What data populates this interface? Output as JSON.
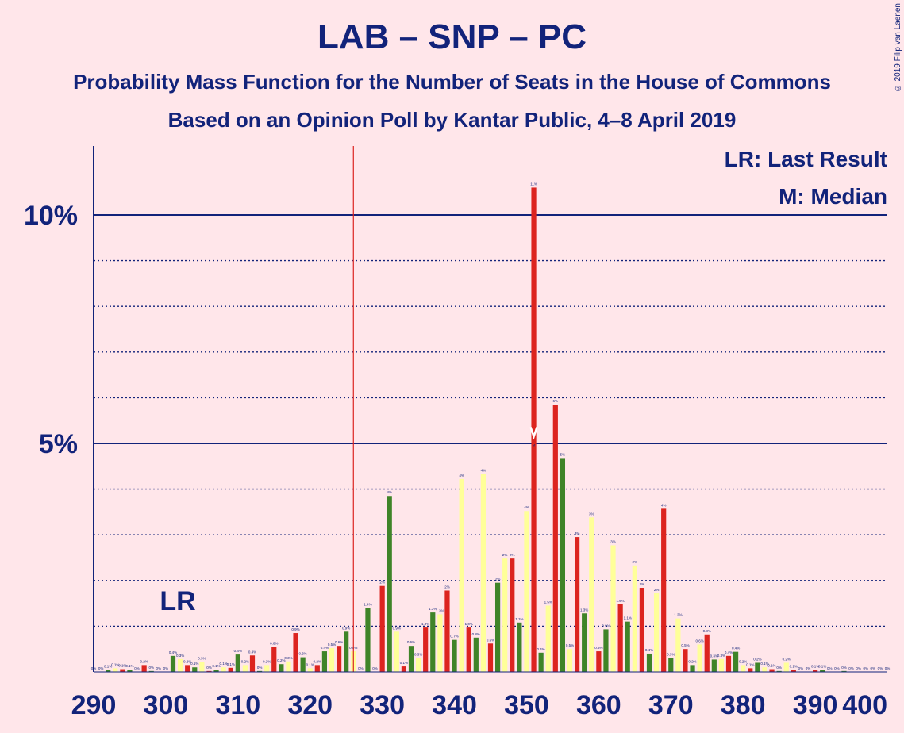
{
  "title": "LAB – SNP – PC",
  "subtitle1": "Probability Mass Function for the Number of Seats in the House of Commons",
  "subtitle2": "Based on an Opinion Poll by Kantar Public, 4–8 April 2019",
  "copyright": "© 2019 Filip van Laenen",
  "legend": {
    "lr": "LR: Last Result",
    "m": "M: Median"
  },
  "lr_label": "LR",
  "median_label": "M",
  "colors": {
    "background": "#FFE6EA",
    "red": "#DC241F",
    "green": "#3F8428",
    "yellow": "#FFFF99",
    "text": "#12237A"
  },
  "chart_data": {
    "type": "bar",
    "x_range": [
      290,
      400
    ],
    "x_ticks": [
      290,
      300,
      310,
      320,
      330,
      340,
      350,
      360,
      370,
      380,
      390,
      400
    ],
    "y_ticks": [
      {
        "value": 5,
        "label": "5%"
      },
      {
        "value": 10,
        "label": "10%"
      }
    ],
    "ylim": [
      0,
      11.5
    ],
    "last_result": 326,
    "median": 351,
    "color_cycle": [
      "#FFFF99",
      "#DC241F",
      "#3F8428"
    ],
    "values": [
      [
        290,
        0.0,
        "0%"
      ],
      [
        291,
        0.0,
        "0%"
      ],
      [
        292,
        0.04,
        "0.1%"
      ],
      [
        293,
        0.08,
        "0.1%"
      ],
      [
        294,
        0.06,
        "0.1%"
      ],
      [
        295,
        0.05,
        "0.1%"
      ],
      [
        296,
        0.0,
        "0%"
      ],
      [
        297,
        0.15,
        "0.2%"
      ],
      [
        298,
        0.02,
        "0%"
      ],
      [
        299,
        0.0,
        "0%"
      ],
      [
        300,
        0.0,
        "0%"
      ],
      [
        301,
        0.35,
        "0.4%"
      ],
      [
        302,
        0.28,
        "0.3%"
      ],
      [
        303,
        0.15,
        "0.2%"
      ],
      [
        304,
        0.1,
        "0.1%"
      ],
      [
        305,
        0.22,
        "0.3%"
      ],
      [
        306,
        0.02,
        "0%"
      ],
      [
        307,
        0.05,
        "0.1%"
      ],
      [
        308,
        0.1,
        "0.1%"
      ],
      [
        309,
        0.09,
        "0.1%"
      ],
      [
        310,
        0.38,
        "0.4%"
      ],
      [
        311,
        0.15,
        "0.2%"
      ],
      [
        312,
        0.36,
        "0.4%"
      ],
      [
        313,
        0.02,
        "0%"
      ],
      [
        314,
        0.15,
        "0.2%"
      ],
      [
        315,
        0.55,
        "0.6%"
      ],
      [
        316,
        0.17,
        "0.2%"
      ],
      [
        317,
        0.23,
        "0.3%"
      ],
      [
        318,
        0.85,
        "0.9%"
      ],
      [
        319,
        0.32,
        "0.3%"
      ],
      [
        320,
        0.08,
        "0.1%"
      ],
      [
        321,
        0.15,
        "0.2%"
      ],
      [
        322,
        0.45,
        "0.4%"
      ],
      [
        323,
        0.52,
        "0.5%"
      ],
      [
        324,
        0.57,
        "0.6%"
      ],
      [
        325,
        0.88,
        "0.9%"
      ],
      [
        326,
        0.45,
        "0.5%"
      ],
      [
        327,
        0.0,
        "0%"
      ],
      [
        328,
        1.4,
        "1.4%"
      ],
      [
        329,
        0.0,
        "0%"
      ],
      [
        330,
        1.88,
        "2%"
      ],
      [
        331,
        3.85,
        "4%"
      ],
      [
        332,
        0.88,
        "0.9%"
      ],
      [
        333,
        0.12,
        "0.1%"
      ],
      [
        334,
        0.57,
        "0.6%"
      ],
      [
        335,
        0.3,
        "0.3%"
      ],
      [
        336,
        0.97,
        "1.0%"
      ],
      [
        337,
        1.3,
        "1.3%"
      ],
      [
        338,
        1.26,
        "1.3%"
      ],
      [
        339,
        1.78,
        "2%"
      ],
      [
        340,
        0.7,
        "0.7%"
      ],
      [
        341,
        4.22,
        "4%"
      ],
      [
        342,
        0.97,
        "1.0%"
      ],
      [
        343,
        0.75,
        "0.8%"
      ],
      [
        344,
        4.33,
        "4%"
      ],
      [
        345,
        0.62,
        "0.6%"
      ],
      [
        346,
        1.95,
        "2%"
      ],
      [
        347,
        2.48,
        "2%"
      ],
      [
        348,
        2.48,
        "2%"
      ],
      [
        349,
        1.08,
        "1.1%"
      ],
      [
        350,
        3.52,
        "4%"
      ],
      [
        351,
        10.6,
        "11%"
      ],
      [
        352,
        0.42,
        "0.4%"
      ],
      [
        353,
        1.45,
        "1.5%"
      ],
      [
        354,
        5.85,
        "6%"
      ],
      [
        355,
        4.68,
        "5%"
      ],
      [
        356,
        0.5,
        "0.5%"
      ],
      [
        357,
        2.95,
        "3%"
      ],
      [
        358,
        1.28,
        "1.3%"
      ],
      [
        359,
        3.38,
        "3%"
      ],
      [
        360,
        0.45,
        "0.5%"
      ],
      [
        361,
        0.93,
        "0.9%"
      ],
      [
        362,
        2.77,
        "3%"
      ],
      [
        363,
        1.48,
        "1.5%"
      ],
      [
        364,
        1.1,
        "1.1%"
      ],
      [
        365,
        2.33,
        "2%"
      ],
      [
        366,
        1.84,
        "2%"
      ],
      [
        367,
        0.4,
        "0.4%"
      ],
      [
        368,
        1.72,
        "2%"
      ],
      [
        369,
        3.57,
        "4%"
      ],
      [
        370,
        0.3,
        "0.3%"
      ],
      [
        371,
        1.17,
        "1.2%"
      ],
      [
        372,
        0.5,
        "0.5%"
      ],
      [
        373,
        0.15,
        "0.2%"
      ],
      [
        374,
        0.6,
        "0.6%"
      ],
      [
        375,
        0.82,
        "0.8%"
      ],
      [
        376,
        0.27,
        "0.3%"
      ],
      [
        377,
        0.28,
        "0.3%"
      ],
      [
        378,
        0.35,
        "0.4%"
      ],
      [
        379,
        0.44,
        "0.4%"
      ],
      [
        380,
        0.15,
        "0.2%"
      ],
      [
        381,
        0.08,
        "0.1%"
      ],
      [
        382,
        0.2,
        "0.2%"
      ],
      [
        383,
        0.1,
        "0.1%"
      ],
      [
        384,
        0.06,
        "0.1%"
      ],
      [
        385,
        0.02,
        "0%"
      ],
      [
        386,
        0.2,
        "0.2%"
      ],
      [
        387,
        0.04,
        "0.1%"
      ],
      [
        388,
        0.0,
        "0%"
      ],
      [
        389,
        0.0,
        "0%"
      ],
      [
        390,
        0.04,
        "0.1%"
      ],
      [
        391,
        0.04,
        "0.1%"
      ],
      [
        392,
        0.0,
        "0%"
      ],
      [
        393,
        0.0,
        "0%"
      ],
      [
        394,
        0.02,
        "0%"
      ],
      [
        395,
        0.0,
        "0%"
      ],
      [
        396,
        0.0,
        "0%"
      ],
      [
        397,
        0.0,
        "0%"
      ],
      [
        398,
        0.0,
        "0%"
      ],
      [
        399,
        0.0,
        "0%"
      ],
      [
        400,
        0.0,
        "0%"
      ]
    ]
  }
}
